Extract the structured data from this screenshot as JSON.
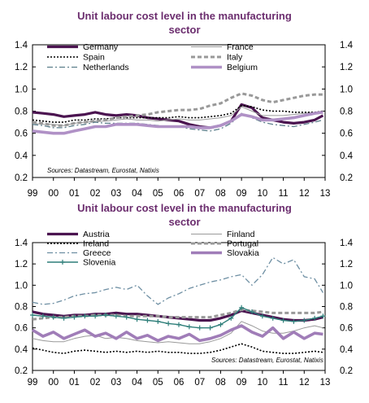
{
  "colors": {
    "title": "#6b2d6e",
    "germany": "#4b1450",
    "france": "#9a9a9a",
    "spain": "#000000",
    "italy": "#999999",
    "netherlands": "#5d7f8c",
    "belgium": "#b091c6",
    "austria": "#4b1450",
    "finland": "#9a9a9a",
    "ireland": "#000000",
    "portugal": "#999999",
    "greece": "#6e8fa3",
    "slovenia": "#2f7f7a",
    "slovakia": "#a07db8"
  },
  "chart_data": [
    {
      "type": "line",
      "title": "Unit labour cost level in the manufacturing sector",
      "source": "Sources: Datastream, Eurostat, Natixis",
      "xlabel": "",
      "ylabel": "",
      "x_ticks": [
        "99",
        "00",
        "01",
        "02",
        "03",
        "04",
        "05",
        "06",
        "07",
        "08",
        "09",
        "10",
        "11",
        "12",
        "13"
      ],
      "y_ticks": [
        "0.2",
        "0.4",
        "0.6",
        "0.8",
        "1.0",
        "1.2",
        "1.4"
      ],
      "ylim": [
        0.2,
        1.4
      ],
      "xlim": [
        1999,
        2013
      ],
      "dual_axis": true,
      "legend_position": "top",
      "series": [
        {
          "name": "Germany",
          "style": "thick-solid",
          "color_key": "germany",
          "x": [
            1999,
            1999.5,
            2000,
            2000.5,
            2001,
            2001.5,
            2002,
            2002.5,
            2003,
            2003.5,
            2004,
            2004.5,
            2005,
            2005.5,
            2006,
            2006.5,
            2007,
            2007.5,
            2008,
            2008.5,
            2009,
            2009.5,
            2010,
            2010.5,
            2011,
            2011.5,
            2012,
            2012.5,
            2012.9
          ],
          "values": [
            0.79,
            0.78,
            0.77,
            0.75,
            0.76,
            0.77,
            0.79,
            0.77,
            0.76,
            0.77,
            0.76,
            0.74,
            0.73,
            0.72,
            0.71,
            0.68,
            0.66,
            0.65,
            0.67,
            0.71,
            0.86,
            0.83,
            0.74,
            0.72,
            0.7,
            0.69,
            0.7,
            0.72,
            0.76
          ]
        },
        {
          "name": "France",
          "style": "thin-solid",
          "color_key": "france",
          "x": [
            1999,
            1999.5,
            2000,
            2000.5,
            2001,
            2001.5,
            2002,
            2002.5,
            2003,
            2003.5,
            2004,
            2004.5,
            2005,
            2005.5,
            2006,
            2006.5,
            2007,
            2007.5,
            2008,
            2008.5,
            2009,
            2009.5,
            2010,
            2010.5,
            2011,
            2011.5,
            2012,
            2012.5,
            2012.9
          ],
          "values": [
            0.69,
            0.68,
            0.68,
            0.67,
            0.69,
            0.7,
            0.71,
            0.71,
            0.72,
            0.73,
            0.72,
            0.72,
            0.71,
            0.72,
            0.73,
            0.72,
            0.72,
            0.73,
            0.74,
            0.76,
            0.84,
            0.8,
            0.76,
            0.76,
            0.76,
            0.77,
            0.78,
            0.79,
            0.8
          ]
        },
        {
          "name": "Spain",
          "style": "dotted",
          "color_key": "spain",
          "x": [
            1999,
            1999.5,
            2000,
            2000.5,
            2001,
            2001.5,
            2002,
            2002.5,
            2003,
            2003.5,
            2004,
            2004.5,
            2005,
            2005.5,
            2006,
            2006.5,
            2007,
            2007.5,
            2008,
            2008.5,
            2009,
            2009.5,
            2010,
            2010.5,
            2011,
            2011.5,
            2012,
            2012.5,
            2012.9
          ],
          "values": [
            0.72,
            0.71,
            0.7,
            0.7,
            0.72,
            0.72,
            0.73,
            0.73,
            0.74,
            0.74,
            0.74,
            0.74,
            0.74,
            0.74,
            0.75,
            0.74,
            0.74,
            0.75,
            0.76,
            0.78,
            0.85,
            0.84,
            0.81,
            0.8,
            0.8,
            0.79,
            0.79,
            0.79,
            0.8
          ]
        },
        {
          "name": "Italy",
          "style": "thick-dashed",
          "color_key": "italy",
          "x": [
            1999,
            1999.5,
            2000,
            2000.5,
            2001,
            2001.5,
            2002,
            2002.5,
            2003,
            2003.5,
            2004,
            2004.5,
            2005,
            2005.5,
            2006,
            2006.5,
            2007,
            2007.5,
            2008,
            2008.5,
            2009,
            2009.5,
            2010,
            2010.5,
            2011,
            2011.5,
            2012,
            2012.5,
            2012.9
          ],
          "values": [
            0.7,
            0.69,
            0.67,
            0.67,
            0.69,
            0.7,
            0.71,
            0.72,
            0.74,
            0.75,
            0.76,
            0.77,
            0.79,
            0.8,
            0.81,
            0.81,
            0.82,
            0.85,
            0.87,
            0.92,
            0.96,
            0.94,
            0.9,
            0.88,
            0.9,
            0.92,
            0.94,
            0.95,
            0.95
          ]
        },
        {
          "name": "Netherlands",
          "style": "dash-dot",
          "color_key": "netherlands",
          "x": [
            1999,
            1999.5,
            2000,
            2000.5,
            2001,
            2001.5,
            2002,
            2002.5,
            2003,
            2003.5,
            2004,
            2004.5,
            2005,
            2005.5,
            2006,
            2006.5,
            2007,
            2007.5,
            2008,
            2008.5,
            2009,
            2009.5,
            2010,
            2010.5,
            2011,
            2011.5,
            2012,
            2012.5,
            2012.9
          ],
          "values": [
            0.68,
            0.67,
            0.65,
            0.65,
            0.67,
            0.68,
            0.7,
            0.69,
            0.69,
            0.69,
            0.69,
            0.68,
            0.67,
            0.66,
            0.66,
            0.64,
            0.63,
            0.62,
            0.64,
            0.69,
            0.78,
            0.74,
            0.7,
            0.68,
            0.67,
            0.66,
            0.68,
            0.7,
            0.72
          ]
        },
        {
          "name": "Belgium",
          "style": "thick-light",
          "color_key": "belgium",
          "x": [
            1999,
            1999.5,
            2000,
            2000.5,
            2001,
            2001.5,
            2002,
            2002.5,
            2003,
            2003.5,
            2004,
            2004.5,
            2005,
            2005.5,
            2006,
            2006.5,
            2007,
            2007.5,
            2008,
            2008.5,
            2009,
            2009.5,
            2010,
            2010.5,
            2011,
            2011.5,
            2012,
            2012.5,
            2012.9
          ],
          "values": [
            0.62,
            0.61,
            0.6,
            0.6,
            0.62,
            0.64,
            0.66,
            0.66,
            0.68,
            0.68,
            0.68,
            0.67,
            0.66,
            0.66,
            0.66,
            0.66,
            0.65,
            0.65,
            0.67,
            0.71,
            0.77,
            0.75,
            0.72,
            0.72,
            0.73,
            0.74,
            0.76,
            0.78,
            0.79
          ]
        }
      ]
    },
    {
      "type": "line",
      "title": "Unit labour cost level in the manufacturing sector",
      "source": "Sources: Datastream, Eurostat, Natixis",
      "xlabel": "",
      "ylabel": "",
      "x_ticks": [
        "99",
        "00",
        "01",
        "02",
        "03",
        "04",
        "05",
        "06",
        "07",
        "08",
        "09",
        "10",
        "11",
        "12",
        "13"
      ],
      "y_ticks": [
        "0.2",
        "0.4",
        "0.6",
        "0.8",
        "1.0",
        "1.2",
        "1.4"
      ],
      "ylim": [
        0.2,
        1.4
      ],
      "xlim": [
        1999,
        2013
      ],
      "dual_axis": true,
      "legend_position": "top",
      "series": [
        {
          "name": "Austria",
          "style": "thick-solid",
          "color_key": "austria",
          "x": [
            1999,
            1999.5,
            2000,
            2000.5,
            2001,
            2001.5,
            2002,
            2002.5,
            2003,
            2003.5,
            2004,
            2004.5,
            2005,
            2005.5,
            2006,
            2006.5,
            2007,
            2007.5,
            2008,
            2008.5,
            2009,
            2009.5,
            2010,
            2010.5,
            2011,
            2011.5,
            2012,
            2012.5,
            2012.9
          ],
          "values": [
            0.75,
            0.73,
            0.72,
            0.71,
            0.72,
            0.72,
            0.73,
            0.73,
            0.74,
            0.73,
            0.73,
            0.72,
            0.71,
            0.7,
            0.69,
            0.68,
            0.67,
            0.67,
            0.69,
            0.72,
            0.76,
            0.74,
            0.72,
            0.7,
            0.68,
            0.67,
            0.67,
            0.68,
            0.7
          ]
        },
        {
          "name": "Finland",
          "style": "thin-solid",
          "color_key": "finland",
          "x": [
            1999,
            1999.5,
            2000,
            2000.5,
            2001,
            2001.5,
            2002,
            2002.5,
            2003,
            2003.5,
            2004,
            2004.5,
            2005,
            2005.5,
            2006,
            2006.5,
            2007,
            2007.5,
            2008,
            2008.5,
            2009,
            2009.5,
            2010,
            2010.5,
            2011,
            2011.5,
            2012,
            2012.5,
            2012.9
          ],
          "values": [
            0.5,
            0.48,
            0.47,
            0.47,
            0.5,
            0.52,
            0.53,
            0.5,
            0.51,
            0.5,
            0.48,
            0.47,
            0.46,
            0.47,
            0.46,
            0.45,
            0.45,
            0.47,
            0.5,
            0.55,
            0.66,
            0.62,
            0.57,
            0.55,
            0.55,
            0.57,
            0.6,
            0.62,
            0.6
          ]
        },
        {
          "name": "Ireland",
          "style": "dotted",
          "color_key": "ireland",
          "x": [
            1999,
            1999.5,
            2000,
            2000.5,
            2001,
            2001.5,
            2002,
            2002.5,
            2003,
            2003.5,
            2004,
            2004.5,
            2005,
            2005.5,
            2006,
            2006.5,
            2007,
            2007.5,
            2008,
            2008.5,
            2009,
            2009.5,
            2010,
            2010.5,
            2011,
            2011.5,
            2012,
            2012.5,
            2012.9
          ],
          "values": [
            0.41,
            0.39,
            0.37,
            0.36,
            0.38,
            0.39,
            0.38,
            0.37,
            0.38,
            0.37,
            0.38,
            0.37,
            0.38,
            0.37,
            0.37,
            0.36,
            0.36,
            0.37,
            0.39,
            0.42,
            0.45,
            0.42,
            0.38,
            0.37,
            0.36,
            0.36,
            0.37,
            0.38,
            0.37
          ]
        },
        {
          "name": "Portugal",
          "style": "thick-dashed",
          "color_key": "portugal",
          "x": [
            1999,
            1999.5,
            2000,
            2000.5,
            2001,
            2001.5,
            2002,
            2002.5,
            2003,
            2003.5,
            2004,
            2004.5,
            2005,
            2005.5,
            2006,
            2006.5,
            2007,
            2007.5,
            2008,
            2008.5,
            2009,
            2009.5,
            2010,
            2010.5,
            2011,
            2011.5,
            2012,
            2012.5,
            2012.9
          ],
          "values": [
            0.68,
            0.69,
            0.7,
            0.7,
            0.71,
            0.71,
            0.72,
            0.72,
            0.72,
            0.71,
            0.71,
            0.71,
            0.71,
            0.7,
            0.7,
            0.7,
            0.7,
            0.7,
            0.72,
            0.74,
            0.77,
            0.76,
            0.75,
            0.74,
            0.74,
            0.74,
            0.74,
            0.74,
            0.75
          ]
        },
        {
          "name": "Greece",
          "style": "dash-dot",
          "color_key": "greece",
          "x": [
            1999,
            1999.5,
            2000,
            2000.5,
            2001,
            2001.5,
            2002,
            2002.5,
            2003,
            2003.5,
            2004,
            2004.5,
            2005,
            2005.5,
            2006,
            2006.5,
            2007,
            2007.5,
            2008,
            2008.5,
            2009,
            2009.5,
            2010,
            2010.5,
            2011,
            2011.5,
            2012,
            2012.5,
            2012.9
          ],
          "values": [
            0.84,
            0.82,
            0.83,
            0.86,
            0.9,
            0.92,
            0.93,
            0.96,
            0.98,
            0.96,
            1.0,
            0.9,
            0.82,
            0.88,
            0.92,
            0.97,
            1.0,
            1.03,
            1.05,
            1.08,
            1.1,
            1.0,
            1.1,
            1.26,
            1.2,
            1.24,
            1.08,
            1.06,
            0.93
          ]
        },
        {
          "name": "Slovenia",
          "style": "solid-plus",
          "color_key": "slovenia",
          "x": [
            1999,
            1999.5,
            2000,
            2000.5,
            2001,
            2001.5,
            2002,
            2002.5,
            2003,
            2003.5,
            2004,
            2004.5,
            2005,
            2005.5,
            2006,
            2006.5,
            2007,
            2007.5,
            2008,
            2008.5,
            2009,
            2009.5,
            2010,
            2010.5,
            2011,
            2011.5,
            2012,
            2012.5,
            2012.9
          ],
          "values": [
            0.72,
            0.71,
            0.7,
            0.69,
            0.7,
            0.71,
            0.71,
            0.72,
            0.71,
            0.7,
            0.68,
            0.67,
            0.66,
            0.64,
            0.63,
            0.61,
            0.6,
            0.6,
            0.63,
            0.69,
            0.79,
            0.75,
            0.71,
            0.69,
            0.67,
            0.66,
            0.67,
            0.69,
            0.71
          ]
        },
        {
          "name": "Slovakia",
          "style": "thick-light",
          "color_key": "slovakia",
          "x": [
            1999,
            1999.5,
            2000,
            2000.5,
            2001,
            2001.5,
            2002,
            2002.5,
            2003,
            2003.5,
            2004,
            2004.5,
            2005,
            2005.5,
            2006,
            2006.5,
            2007,
            2007.5,
            2008,
            2008.5,
            2009,
            2009.5,
            2010,
            2010.5,
            2011,
            2011.5,
            2012,
            2012.5,
            2012.9
          ],
          "values": [
            0.58,
            0.52,
            0.56,
            0.5,
            0.54,
            0.58,
            0.52,
            0.55,
            0.5,
            0.56,
            0.5,
            0.53,
            0.48,
            0.52,
            0.5,
            0.54,
            0.48,
            0.5,
            0.53,
            0.58,
            0.62,
            0.56,
            0.52,
            0.6,
            0.5,
            0.56,
            0.5,
            0.55,
            0.54
          ]
        }
      ]
    }
  ]
}
